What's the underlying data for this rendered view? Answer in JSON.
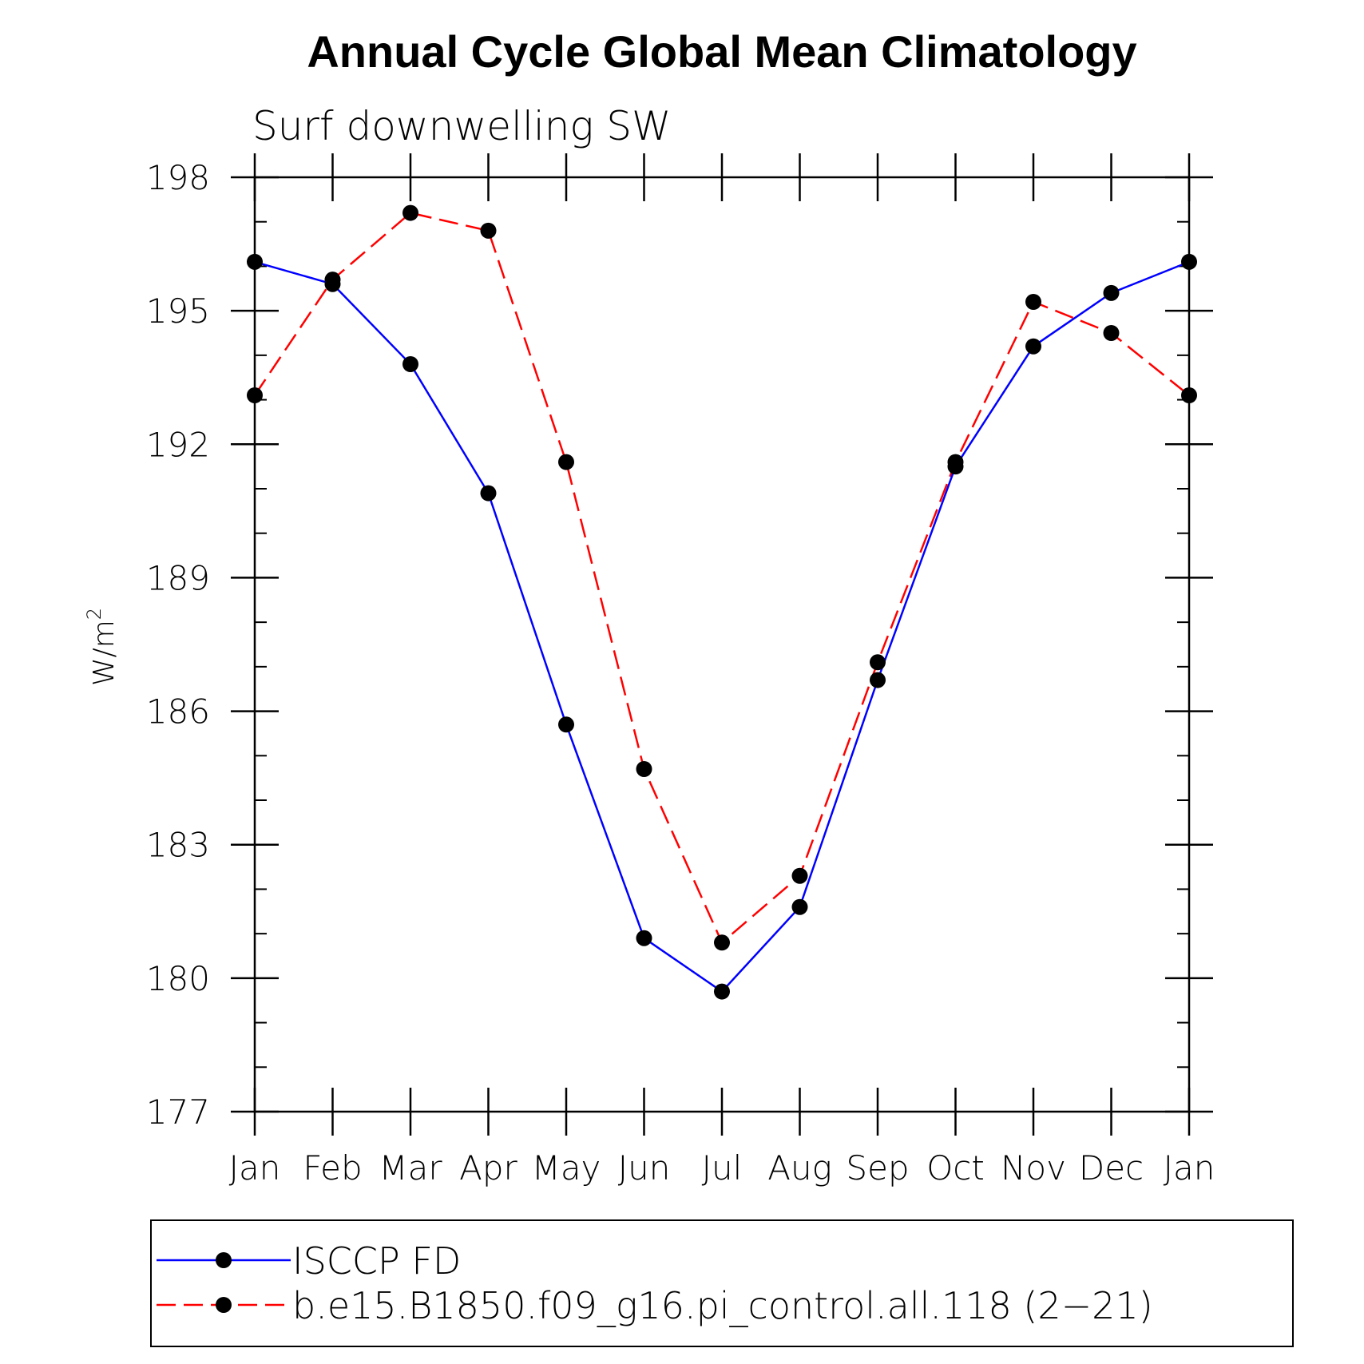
{
  "chart_data": {
    "type": "line",
    "title": "Annual Cycle Global Mean Climatology",
    "subtitle": "Surf downwelling SW",
    "ylabel": "W/m",
    "ylabel_sup": "2",
    "xlabel": "",
    "categories": [
      "Jan",
      "Feb",
      "Mar",
      "Apr",
      "May",
      "Jun",
      "Jul",
      "Aug",
      "Sep",
      "Oct",
      "Nov",
      "Dec",
      "Jan"
    ],
    "ylim": [
      177,
      198
    ],
    "yticks": [
      177,
      180,
      183,
      186,
      189,
      192,
      195,
      198
    ],
    "ytick_labels": [
      "177",
      "180",
      "183",
      "186",
      "189",
      "192",
      "195",
      "198"
    ],
    "grid": false,
    "legend_position": "bottom",
    "series": [
      {
        "name": "ISCCP FD",
        "color": "#0000ff",
        "line_style": "solid",
        "marker": "filled-circle",
        "values": [
          196.1,
          195.6,
          193.8,
          190.9,
          185.7,
          180.9,
          179.7,
          181.6,
          186.7,
          191.5,
          194.2,
          195.4,
          196.1
        ]
      },
      {
        "name": "b.e15.B1850.f09_g16.pi_control.all.118 (2−21)",
        "color": "#ff0000",
        "line_style": "dashed",
        "marker": "filled-circle",
        "values": [
          193.1,
          195.7,
          197.2,
          196.8,
          191.6,
          184.7,
          180.8,
          182.3,
          187.1,
          191.6,
          195.2,
          194.5,
          193.1
        ]
      }
    ]
  }
}
